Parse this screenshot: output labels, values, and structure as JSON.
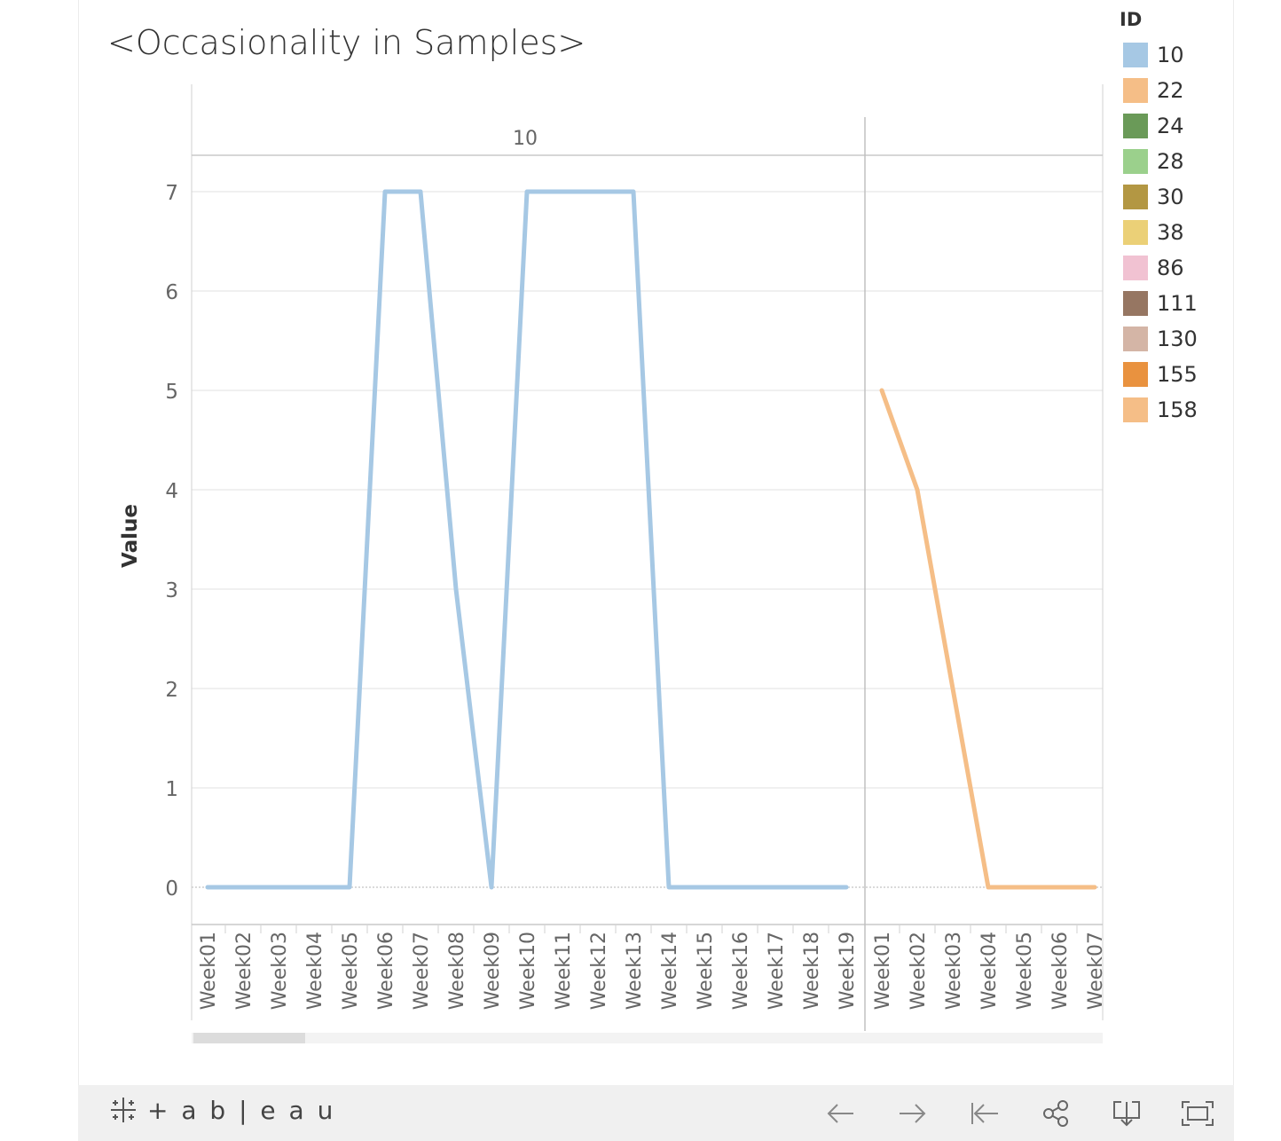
{
  "title": "<Occasionality in Samples>",
  "chart_data": {
    "type": "line",
    "ylabel": "Value",
    "ylim": [
      0,
      7
    ],
    "yticks": [
      0,
      1,
      2,
      3,
      4,
      5,
      6,
      7
    ],
    "panes": [
      {
        "header": "10",
        "categories": [
          "Week01",
          "Week02",
          "Week03",
          "Week04",
          "Week05",
          "Week06",
          "Week07",
          "Week08",
          "Week09",
          "Week10",
          "Week11",
          "Week12",
          "Week13",
          "Week14",
          "Week15",
          "Week16",
          "Week17",
          "Week18",
          "Week19"
        ],
        "series": [
          {
            "name": "10",
            "color": "#a6c8e4",
            "values": [
              0,
              0,
              0,
              0,
              0,
              7,
              7,
              3,
              0,
              7,
              7,
              7,
              7,
              0,
              0,
              0,
              0,
              0,
              0
            ]
          }
        ]
      },
      {
        "header": "",
        "categories": [
          "Week01",
          "Week02",
          "Week03",
          "Week04",
          "Week05",
          "Week06",
          "Week07"
        ],
        "series": [
          {
            "name": "22",
            "color": "#f5be87",
            "values": [
              5,
              4,
              2,
              0,
              0,
              0,
              0
            ]
          }
        ]
      }
    ],
    "legend": {
      "title": "ID",
      "placement": "right",
      "items": [
        {
          "label": "10",
          "color": "#a6c8e4"
        },
        {
          "label": "22",
          "color": "#f5be87"
        },
        {
          "label": "24",
          "color": "#6a9a58"
        },
        {
          "label": "28",
          "color": "#9bd08c"
        },
        {
          "label": "30",
          "color": "#b39743"
        },
        {
          "label": "38",
          "color": "#ebd077"
        },
        {
          "label": "86",
          "color": "#f1c2d2"
        },
        {
          "label": "111",
          "color": "#967662"
        },
        {
          "label": "130",
          "color": "#d4b5a6"
        },
        {
          "label": "155",
          "color": "#e9923f"
        },
        {
          "label": "158",
          "color": "#f5be87"
        }
      ]
    }
  },
  "toolbar": {
    "logo_text": "+ a b | e a u",
    "buttons": [
      {
        "name": "undo-button",
        "icon": "arrow-left-icon"
      },
      {
        "name": "redo-button",
        "icon": "arrow-right-icon"
      },
      {
        "name": "revert-button",
        "icon": "revert-icon"
      },
      {
        "name": "share-button",
        "icon": "share-icon"
      },
      {
        "name": "download-button",
        "icon": "download-icon"
      },
      {
        "name": "fullscreen-button",
        "icon": "fullscreen-icon"
      }
    ]
  }
}
